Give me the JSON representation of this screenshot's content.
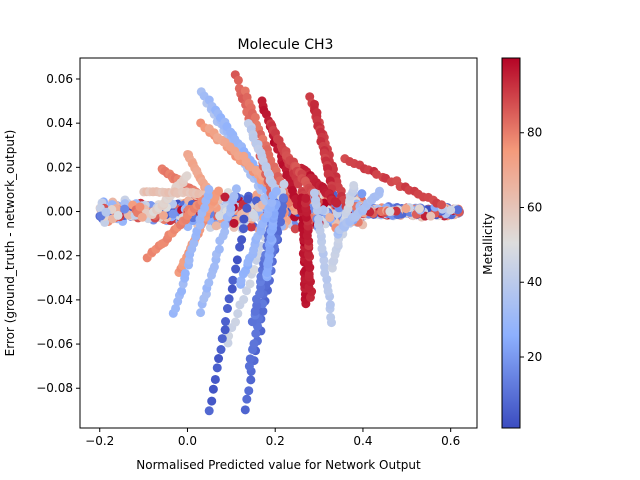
{
  "chart_data": {
    "type": "scatter",
    "title": "Molecule CH3",
    "xlabel": "Normalised Predicted value for Network Output",
    "ylabel": "Error (ground_truth - network_output)",
    "xlim": [
      -0.245,
      0.66
    ],
    "ylim": [
      -0.098,
      0.0695
    ],
    "x_ticks": [
      -0.2,
      0.0,
      0.2,
      0.4,
      0.6
    ],
    "x_tick_labels": [
      "−0.2",
      "0.0",
      "0.2",
      "0.4",
      "0.6"
    ],
    "y_ticks": [
      0.06,
      0.04,
      0.02,
      0.0,
      -0.02,
      -0.04,
      -0.06,
      -0.08
    ],
    "y_tick_labels": [
      "0.06",
      "0.04",
      "0.02",
      "0.00",
      "−0.02",
      "−0.04",
      "−0.06",
      "−0.08"
    ],
    "grid": false,
    "colorbar": {
      "label": "Metallicity",
      "cmap": "coolwarm",
      "range": [
        1,
        100
      ],
      "ticks": [
        20,
        40,
        60,
        80
      ],
      "tick_labels": [
        "20",
        "40",
        "60",
        "80"
      ]
    },
    "streaks": [
      {
        "x": [
          0.03,
          0.19
        ],
        "y": [
          0.054,
          0.002
        ],
        "metallicity": 35
      },
      {
        "x": [
          0.05,
          0.2
        ],
        "y": [
          0.05,
          0.003
        ],
        "metallicity": 30
      },
      {
        "x": [
          0.07,
          0.21
        ],
        "y": [
          0.044,
          0.004
        ],
        "metallicity": 28
      },
      {
        "x": [
          0.03,
          0.24
        ],
        "y": [
          0.04,
          0.002
        ],
        "metallicity": 75
      },
      {
        "x": [
          0.05,
          0.25
        ],
        "y": [
          0.038,
          0.002
        ],
        "metallicity": 72
      },
      {
        "x": [
          0.11,
          0.2
        ],
        "y": [
          0.062,
          0.003
        ],
        "metallicity": 85
      },
      {
        "x": [
          0.13,
          0.23
        ],
        "y": [
          0.054,
          0.004
        ],
        "metallicity": 82
      },
      {
        "x": [
          0.17,
          0.25
        ],
        "y": [
          0.05,
          0.003
        ],
        "metallicity": 97
      },
      {
        "x": [
          0.19,
          0.27
        ],
        "y": [
          0.04,
          0.005
        ],
        "metallicity": 90
      },
      {
        "x": [
          0.28,
          0.36
        ],
        "y": [
          0.052,
          0.002
        ],
        "metallicity": 90
      },
      {
        "x": [
          0.29,
          0.33
        ],
        "y": [
          0.048,
          0.01
        ],
        "metallicity": 92
      },
      {
        "x": [
          0.14,
          0.21
        ],
        "y": [
          0.04,
          0.004
        ],
        "metallicity": 40
      },
      {
        "x": [
          0.26,
          0.34
        ],
        "y": [
          0.02,
          0.004
        ],
        "metallicity": 95
      },
      {
        "x": [
          0.36,
          0.58
        ],
        "y": [
          0.024,
          0.003
        ],
        "metallicity": 90
      },
      {
        "x": [
          0.22,
          0.3
        ],
        "y": [
          0.028,
          0.004
        ],
        "metallicity": 88
      },
      {
        "x": [
          0.0,
          0.06
        ],
        "y": [
          0.026,
          0.004
        ],
        "metallicity": 70
      },
      {
        "x": [
          -0.06,
          0.04
        ],
        "y": [
          0.019,
          0.006
        ],
        "metallicity": 80
      },
      {
        "x": [
          -0.08,
          0.0
        ],
        "y": [
          -0.001,
          0.016
        ],
        "metallicity": 55
      },
      {
        "x": [
          -0.1,
          0.05
        ],
        "y": [
          0.009,
          0.008
        ],
        "metallicity": 60
      },
      {
        "x": [
          -0.09,
          0.04
        ],
        "y": [
          -0.021,
          0.006
        ],
        "metallicity": 78
      },
      {
        "x": [
          -0.02,
          0.07
        ],
        "y": [
          -0.028,
          0.01
        ],
        "metallicity": 75
      },
      {
        "x": [
          -0.03,
          0.05
        ],
        "y": [
          -0.046,
          0.01
        ],
        "metallicity": 30
      },
      {
        "x": [
          0.03,
          0.11
        ],
        "y": [
          -0.045,
          0.01
        ],
        "metallicity": 32
      },
      {
        "x": [
          0.09,
          0.22
        ],
        "y": [
          -0.06,
          0.012
        ],
        "metallicity": 45
      },
      {
        "x": [
          0.05,
          0.14
        ],
        "y": [
          -0.09,
          0.006
        ],
        "metallicity": 5
      },
      {
        "x": [
          0.13,
          0.22
        ],
        "y": [
          -0.09,
          0.005
        ],
        "metallicity": 8
      },
      {
        "x": [
          0.14,
          0.22
        ],
        "y": [
          -0.07,
          0.006
        ],
        "metallicity": 10
      },
      {
        "x": [
          0.15,
          0.2
        ],
        "y": [
          -0.05,
          0.005
        ],
        "metallicity": 12
      },
      {
        "x": [
          0.18,
          0.2
        ],
        "y": [
          -0.03,
          0.003
        ],
        "metallicity": 25
      },
      {
        "x": [
          0.27,
          0.26
        ],
        "y": [
          -0.042,
          0.006
        ],
        "metallicity": 98
      },
      {
        "x": [
          0.28,
          0.27
        ],
        "y": [
          -0.038,
          0.006
        ],
        "metallicity": 95
      },
      {
        "x": [
          0.33,
          0.29
        ],
        "y": [
          -0.05,
          0.008
        ],
        "metallicity": 40
      },
      {
        "x": [
          0.33,
          0.38
        ],
        "y": [
          -0.025,
          0.012
        ],
        "metallicity": 45
      },
      {
        "x": [
          0.34,
          0.44
        ],
        "y": [
          -0.01,
          0.009
        ],
        "metallicity": 35
      },
      {
        "x": [
          0.12,
          0.2
        ],
        "y": [
          -0.033,
          0.009
        ],
        "metallicity": 28
      }
    ],
    "bands": [
      {
        "x": [
          -0.2,
          0.0
        ],
        "spread": 0.006
      },
      {
        "x": [
          0.0,
          0.2
        ],
        "spread": 0.01
      },
      {
        "x": [
          0.2,
          0.4
        ],
        "spread": 0.01
      },
      {
        "x": [
          0.4,
          0.62
        ],
        "spread": 0.003
      }
    ]
  }
}
